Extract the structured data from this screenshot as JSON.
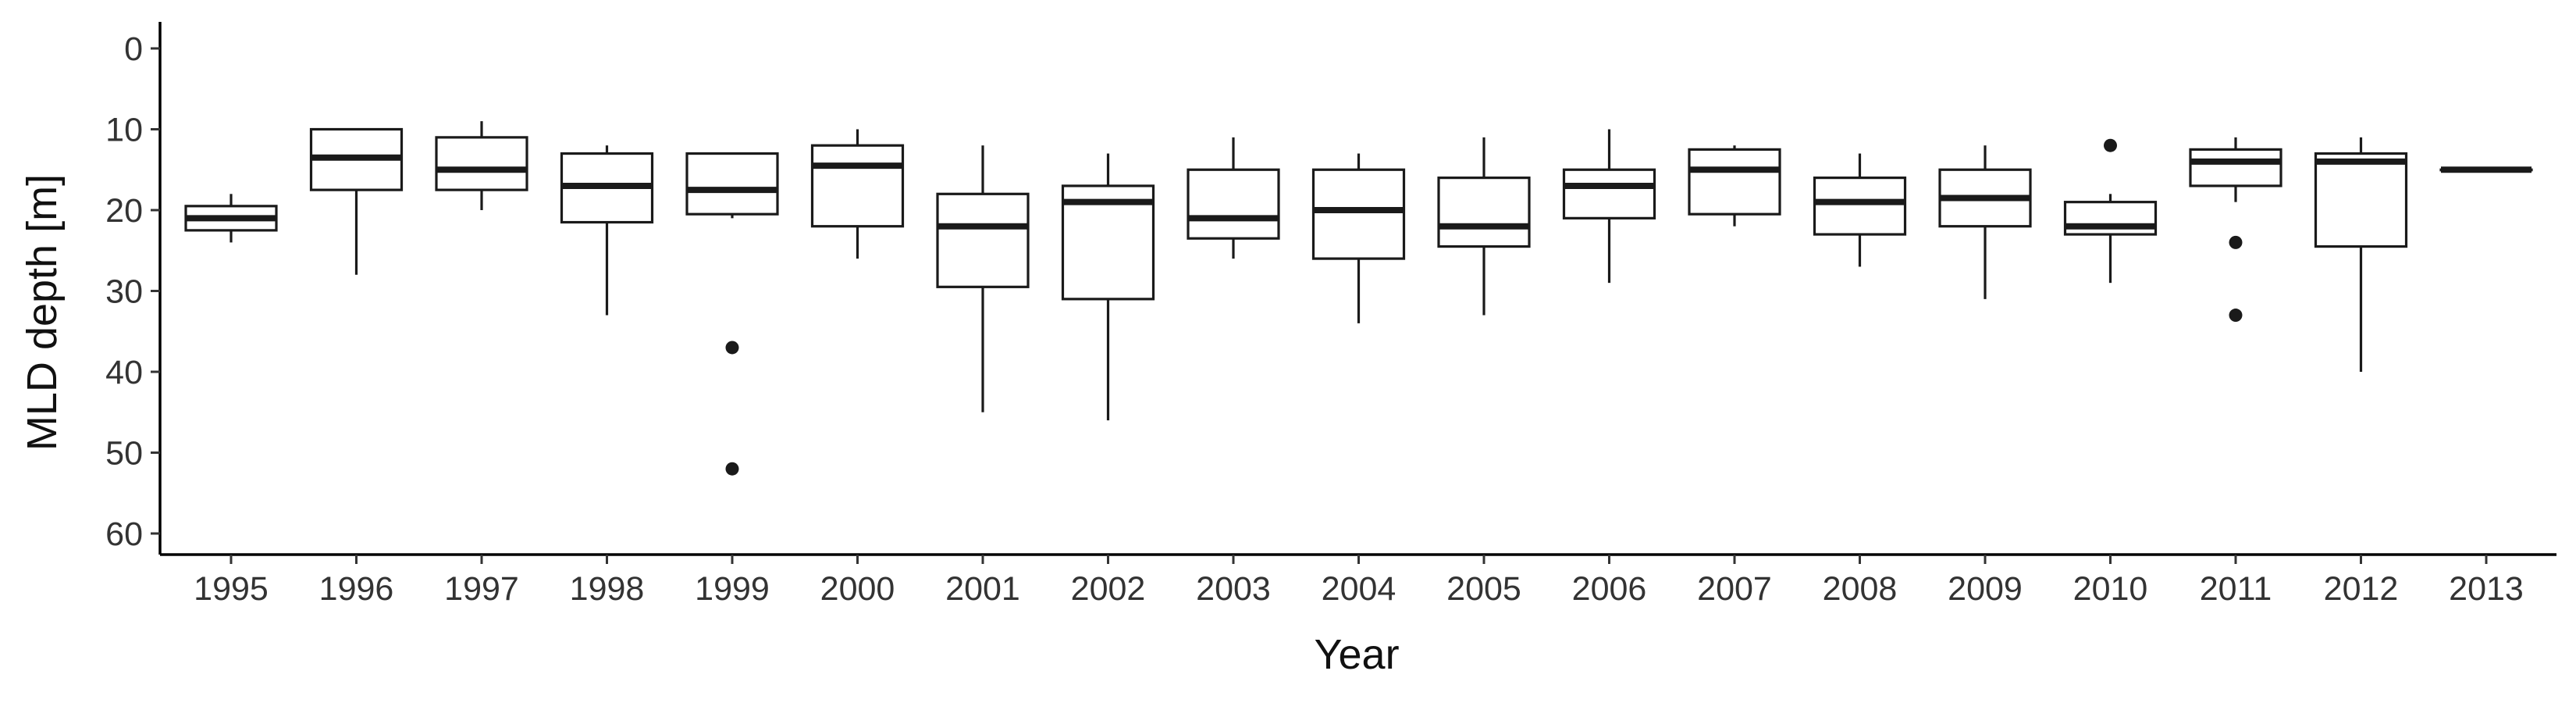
{
  "chart_data": {
    "type": "boxplot",
    "xlabel": "Year",
    "ylabel": "MLD depth [m]",
    "y_axis_reversed": true,
    "ylim": [
      0,
      60
    ],
    "y_ticks": [
      0,
      10,
      20,
      30,
      40,
      50,
      60
    ],
    "grid": false,
    "legend": "none",
    "colors": {
      "box_stroke": "#1a1a1a",
      "box_fill": "#ffffff",
      "axis": "#000000"
    },
    "categories": [
      "1995",
      "1996",
      "1997",
      "1998",
      "1999",
      "2000",
      "2001",
      "2002",
      "2003",
      "2004",
      "2005",
      "2006",
      "2007",
      "2008",
      "2009",
      "2010",
      "2011",
      "2012",
      "2013"
    ],
    "boxes": [
      {
        "x": "1995",
        "whisker_low": 18,
        "q1": 19.5,
        "median": 21,
        "q3": 22.5,
        "whisker_high": 24,
        "outliers": []
      },
      {
        "x": "1996",
        "whisker_low": 10,
        "q1": 10,
        "median": 13.5,
        "q3": 17.5,
        "whisker_high": 28,
        "outliers": []
      },
      {
        "x": "1997",
        "whisker_low": 9,
        "q1": 11,
        "median": 15,
        "q3": 17.5,
        "whisker_high": 20,
        "outliers": []
      },
      {
        "x": "1998",
        "whisker_low": 12,
        "q1": 13,
        "median": 17,
        "q3": 21.5,
        "whisker_high": 33,
        "outliers": []
      },
      {
        "x": "1999",
        "whisker_low": 13,
        "q1": 13,
        "median": 17.5,
        "q3": 20.5,
        "whisker_high": 21,
        "outliers": [
          37,
          52
        ]
      },
      {
        "x": "2000",
        "whisker_low": 10,
        "q1": 12,
        "median": 14.5,
        "q3": 22,
        "whisker_high": 26,
        "outliers": []
      },
      {
        "x": "2001",
        "whisker_low": 12,
        "q1": 18,
        "median": 22,
        "q3": 29.5,
        "whisker_high": 45,
        "outliers": []
      },
      {
        "x": "2002",
        "whisker_low": 13,
        "q1": 17,
        "median": 19,
        "q3": 31,
        "whisker_high": 46,
        "outliers": []
      },
      {
        "x": "2003",
        "whisker_low": 11,
        "q1": 15,
        "median": 21,
        "q3": 23.5,
        "whisker_high": 26,
        "outliers": []
      },
      {
        "x": "2004",
        "whisker_low": 13,
        "q1": 15,
        "median": 20,
        "q3": 26,
        "whisker_high": 34,
        "outliers": []
      },
      {
        "x": "2005",
        "whisker_low": 11,
        "q1": 16,
        "median": 22,
        "q3": 24.5,
        "whisker_high": 33,
        "outliers": []
      },
      {
        "x": "2006",
        "whisker_low": 10,
        "q1": 15,
        "median": 17,
        "q3": 21,
        "whisker_high": 29,
        "outliers": []
      },
      {
        "x": "2007",
        "whisker_low": 12,
        "q1": 12.5,
        "median": 15,
        "q3": 20.5,
        "whisker_high": 22,
        "outliers": []
      },
      {
        "x": "2008",
        "whisker_low": 13,
        "q1": 16,
        "median": 19,
        "q3": 23,
        "whisker_high": 27,
        "outliers": []
      },
      {
        "x": "2009",
        "whisker_low": 12,
        "q1": 15,
        "median": 18.5,
        "q3": 22,
        "whisker_high": 31,
        "outliers": []
      },
      {
        "x": "2010",
        "whisker_low": 18,
        "q1": 19,
        "median": 22,
        "q3": 23,
        "whisker_high": 29,
        "outliers": [
          12
        ]
      },
      {
        "x": "2011",
        "whisker_low": 11,
        "q1": 12.5,
        "median": 14,
        "q3": 17,
        "whisker_high": 19,
        "outliers": [
          24,
          33
        ]
      },
      {
        "x": "2012",
        "whisker_low": 11,
        "q1": 13,
        "median": 14,
        "q3": 24.5,
        "whisker_high": 40,
        "outliers": []
      },
      {
        "x": "2013",
        "whisker_low": 15,
        "q1": 15,
        "median": 15,
        "q3": 15,
        "whisker_high": 15,
        "outliers": []
      }
    ]
  }
}
